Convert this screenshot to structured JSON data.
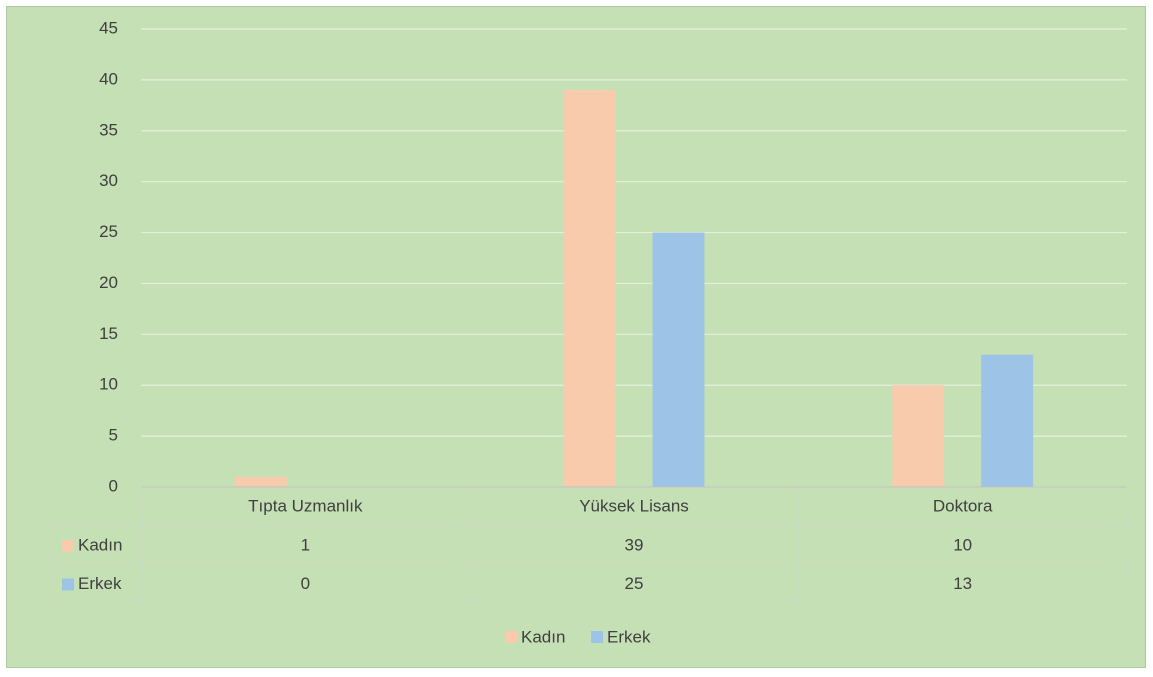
{
  "chart_data": {
    "type": "bar",
    "categories": [
      "Tıpta Uzmanlık",
      "Yüksek Lisans",
      "Doktora"
    ],
    "series": [
      {
        "name": "Kadın",
        "color": "#f8cbad",
        "values": [
          1,
          39,
          10
        ]
      },
      {
        "name": "Erkek",
        "color": "#9dc3e6",
        "values": [
          0,
          25,
          13
        ]
      }
    ],
    "ylim": [
      0,
      45
    ],
    "yticks": [
      0,
      5,
      10,
      15,
      20,
      25,
      30,
      35,
      40,
      45
    ],
    "grid": true,
    "legend": "bottom",
    "data_table": true
  }
}
